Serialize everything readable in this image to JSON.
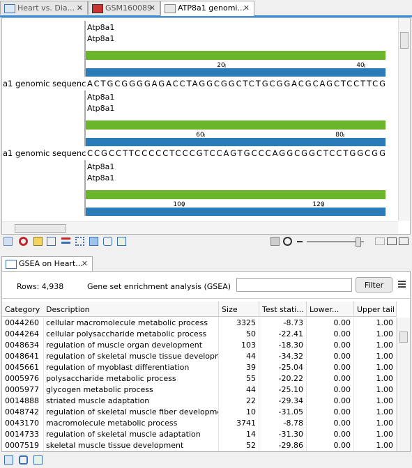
{
  "tabs": [
    "Heart vs. Dia...",
    "GSM160089",
    "ATP8a1 genomi..."
  ],
  "sequence_view": {
    "track_label": "a1 genomic sequenc",
    "blocks": [
      {
        "annotations": [
          "Atp8a1",
          "Atp8a1"
        ],
        "ruler": [
          20,
          40
        ],
        "sequence": "ACTGCGGGGAGACCTAGGCGGCTCTGCGGACGCAGCTCCTTCG"
      },
      {
        "annotations": [
          "Atp8a1",
          "Atp8a1"
        ],
        "ruler": [
          60,
          80
        ],
        "sequence": "CCGCCTTCCCCCTCCCGTCCAGTGCCCAGGCGGCTCCTGGCGG"
      },
      {
        "annotations": [
          "Atp8a1",
          "Atp8a1"
        ],
        "ruler": [
          100,
          120
        ]
      }
    ]
  },
  "gsea": {
    "tab": "GSEA on Heart...",
    "rows_label": "Rows: 4,938",
    "description": "Gene set enrichment analysis (GSEA)",
    "filter_button": "Filter",
    "columns": [
      "Category",
      "Description",
      "Size",
      "Test stati...",
      "Lower...",
      "Upper tail"
    ],
    "rows": [
      [
        "0044260",
        "cellular macromolecule metabolic process",
        "3325",
        "-8.73",
        "0.00",
        "1.00"
      ],
      [
        "0044264",
        "cellular polysaccharide metabolic process",
        "50",
        "-22.41",
        "0.00",
        "1.00"
      ],
      [
        "0048634",
        "regulation of muscle organ development",
        "103",
        "-18.30",
        "0.00",
        "1.00"
      ],
      [
        "0048641",
        "regulation of skeletal muscle tissue development",
        "44",
        "-34.32",
        "0.00",
        "1.00"
      ],
      [
        "0045661",
        "regulation of myoblast differentiation",
        "39",
        "-25.04",
        "0.00",
        "1.00"
      ],
      [
        "0005976",
        "polysaccharide metabolic process",
        "55",
        "-20.22",
        "0.00",
        "1.00"
      ],
      [
        "0005977",
        "glycogen metabolic process",
        "44",
        "-25.10",
        "0.00",
        "1.00"
      ],
      [
        "0014888",
        "striated muscle adaptation",
        "22",
        "-29.34",
        "0.00",
        "1.00"
      ],
      [
        "0048742",
        "regulation of skeletal muscle fiber development",
        "10",
        "-31.05",
        "0.00",
        "1.00"
      ],
      [
        "0043170",
        "macromolecule metabolic process",
        "3741",
        "-8.78",
        "0.00",
        "1.00"
      ],
      [
        "0014733",
        "regulation of skeletal muscle adaptation",
        "14",
        "-31.30",
        "0.00",
        "1.00"
      ],
      [
        "0007519",
        "skeletal muscle tissue development",
        "52",
        "-29.86",
        "0.00",
        "1.00"
      ]
    ]
  }
}
